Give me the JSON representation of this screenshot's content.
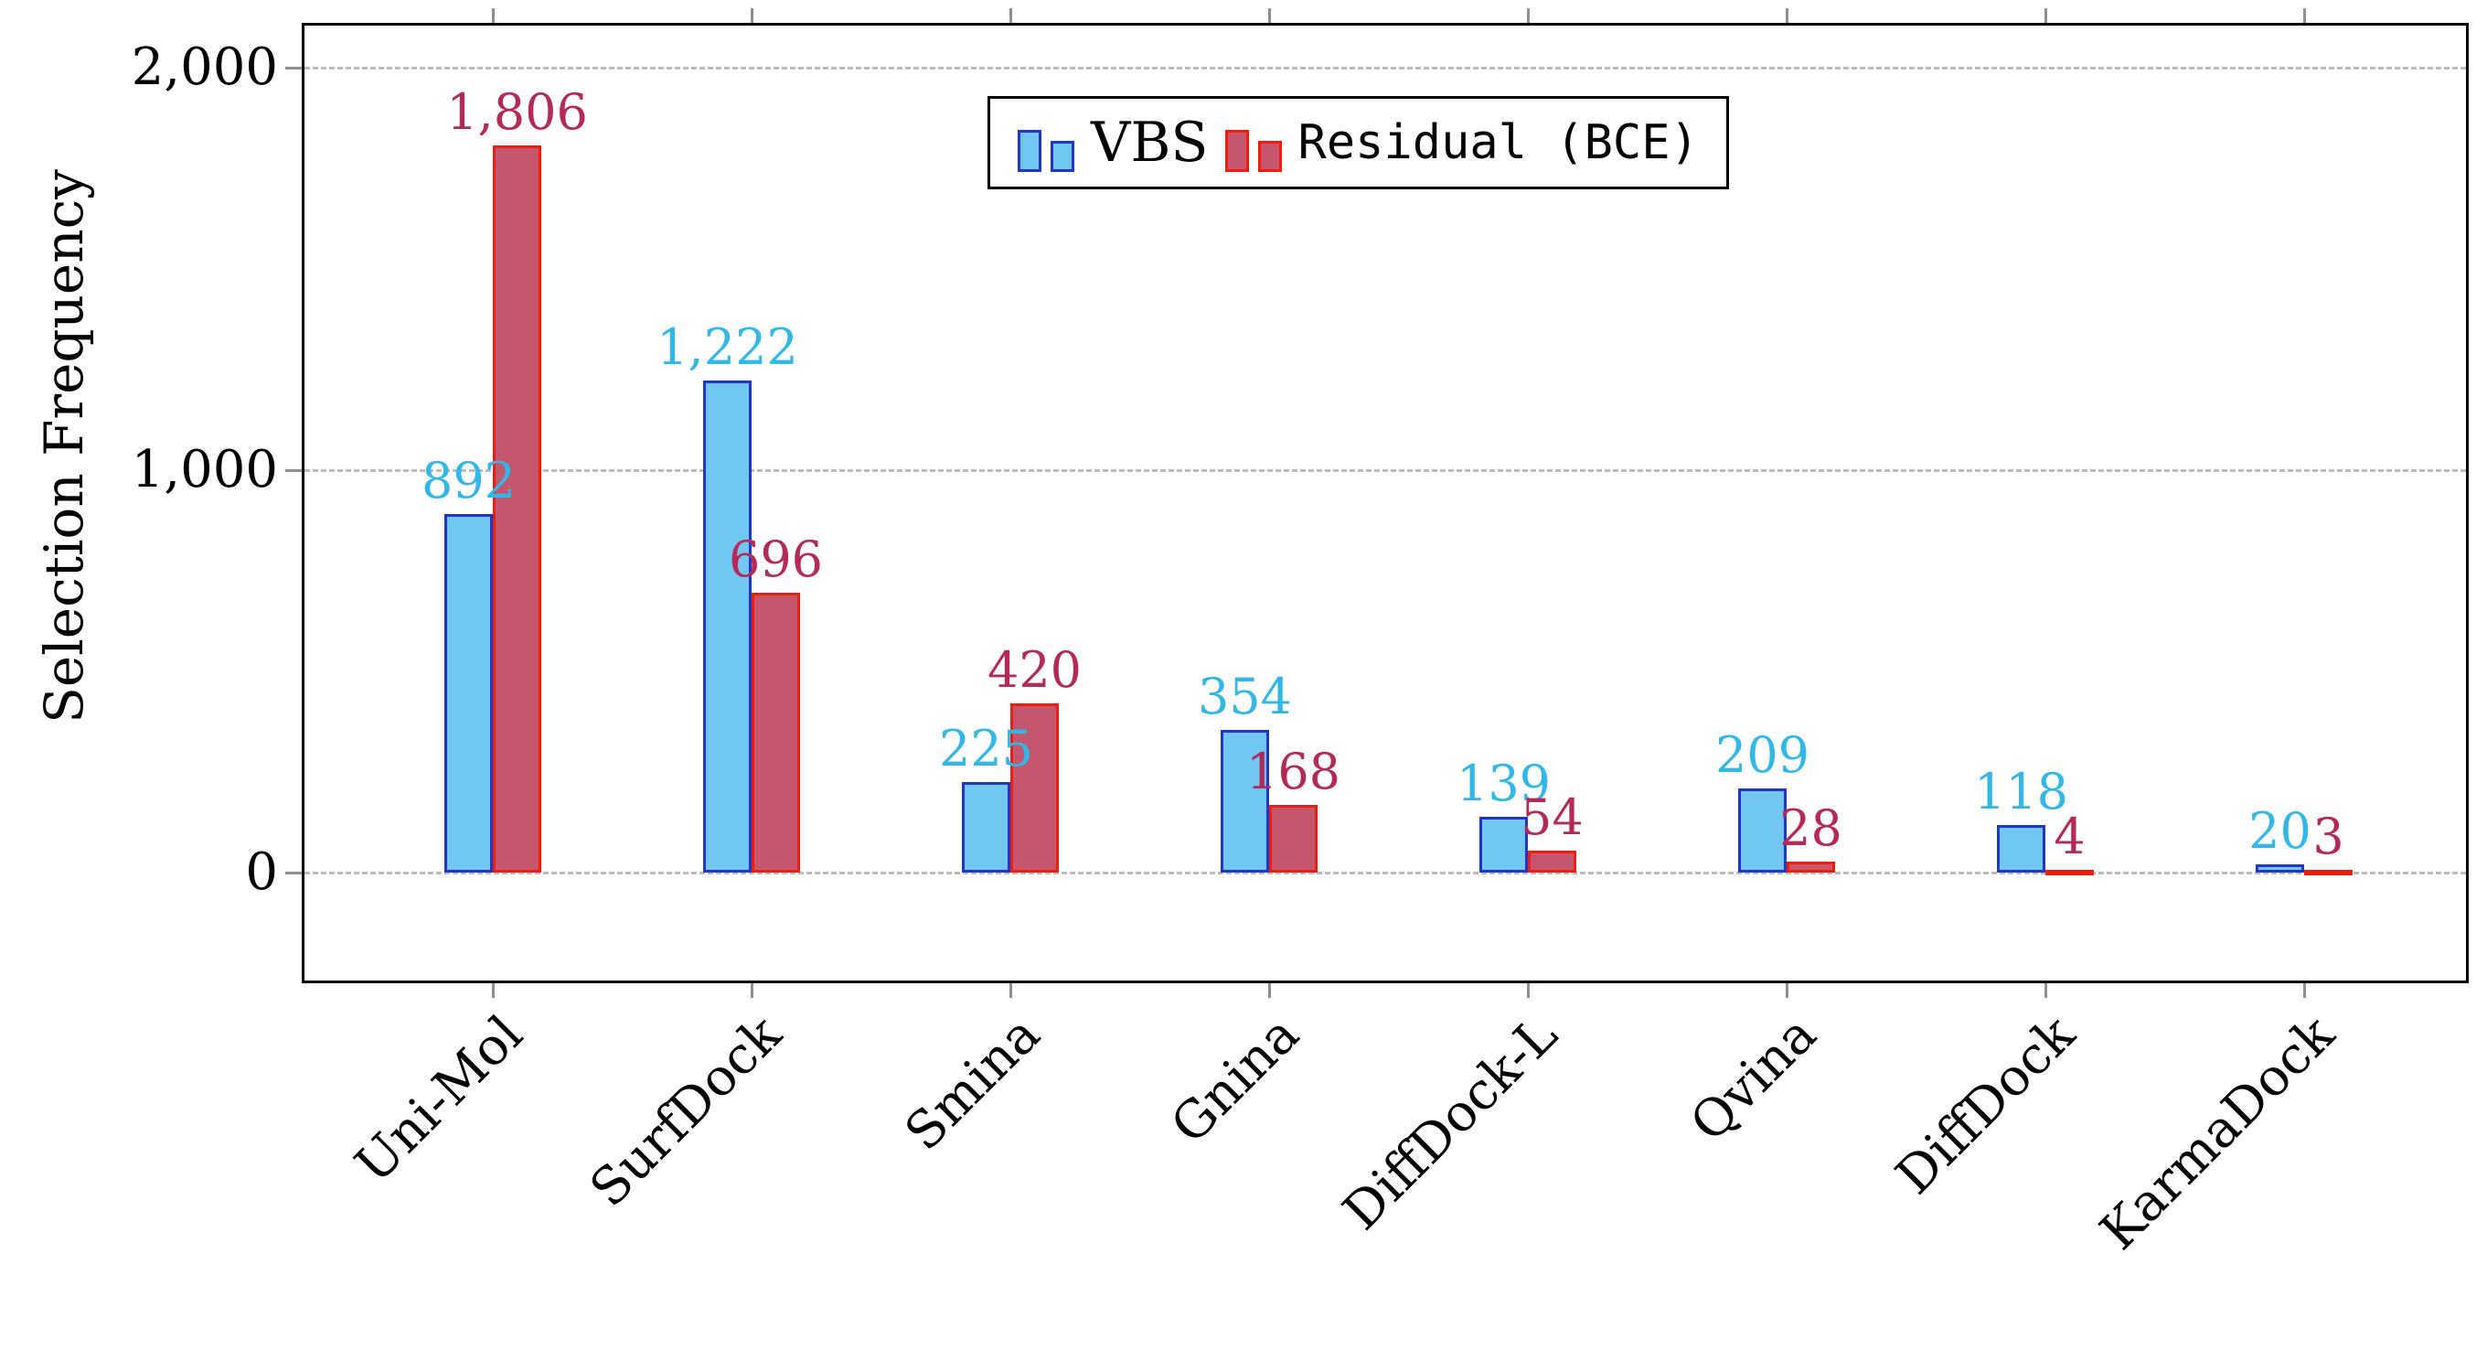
{
  "chart_data": {
    "type": "bar",
    "title": "",
    "xlabel": "",
    "ylabel": "Selection Frequency",
    "categories": [
      "Uni-Mol",
      "SurfDock",
      "Smina",
      "Gnina",
      "DiffDock-L",
      "Qvina",
      "DiffDock",
      "KarmaDock"
    ],
    "series": [
      {
        "name": "VBS",
        "values": [
          892,
          1222,
          225,
          354,
          139,
          209,
          118,
          20
        ],
        "fill": "#70c8f2",
        "border": "#2135cd",
        "value_color": "#31b8e8"
      },
      {
        "name": "Residual (BCE)",
        "values": [
          1806,
          696,
          420,
          168,
          54,
          28,
          4,
          3
        ],
        "fill": "#c4566e",
        "border": "#f01d0c",
        "value_color": "#b52959"
      }
    ],
    "ylim": [
      0,
      2000
    ],
    "yticks": [
      0,
      1000,
      2000
    ],
    "ytick_labels": [
      "0",
      "1,000",
      "2,000"
    ],
    "grid": "dashed horizontal",
    "legend_position": "top center",
    "axis_color": "#000000",
    "grid_color": "#bcbcbc"
  },
  "legend": {
    "items": [
      {
        "label": "VBS"
      },
      {
        "label": "Residual (BCE)"
      }
    ]
  }
}
